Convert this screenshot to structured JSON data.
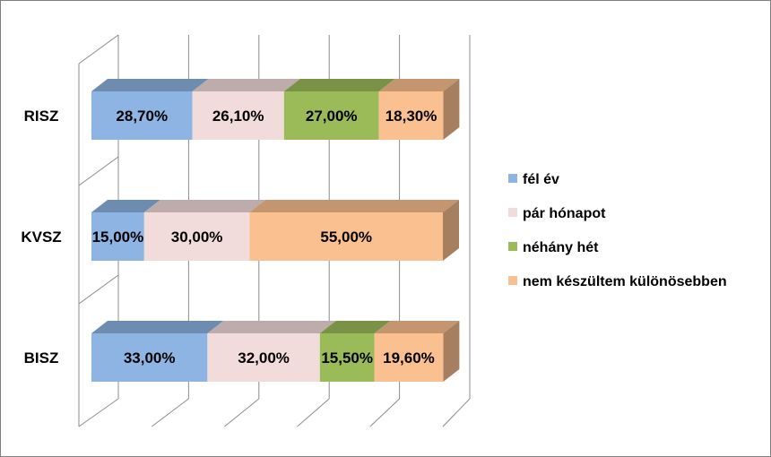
{
  "chart_data": {
    "type": "bar",
    "orientation": "horizontal",
    "stacked": "percent",
    "three_d": true,
    "categories": [
      "RISZ",
      "KVSZ",
      "BISZ"
    ],
    "series": [
      {
        "name": "fél év",
        "color": "#8db4e2",
        "values": [
          28.7,
          15.0,
          33.0
        ],
        "labels": [
          "28,70%",
          "15,00%",
          "33,00%"
        ]
      },
      {
        "name": "pár hónapot",
        "color": "#f2dcdb",
        "values": [
          26.1,
          30.0,
          32.0
        ],
        "labels": [
          "26,10%",
          "30,00%",
          "32,00%"
        ]
      },
      {
        "name": "néhány hét",
        "color": "#9bbb59",
        "values": [
          27.0,
          0,
          15.5
        ],
        "labels": [
          "27,00%",
          "",
          "15,50%"
        ]
      },
      {
        "name": "nem készültem különösebben",
        "color": "#fac090",
        "values": [
          18.3,
          55.0,
          19.6
        ],
        "labels": [
          "18,30%",
          "55,00%",
          "19,60%"
        ]
      }
    ],
    "xlim": [
      0,
      100
    ],
    "grid": true,
    "legend": "right"
  }
}
